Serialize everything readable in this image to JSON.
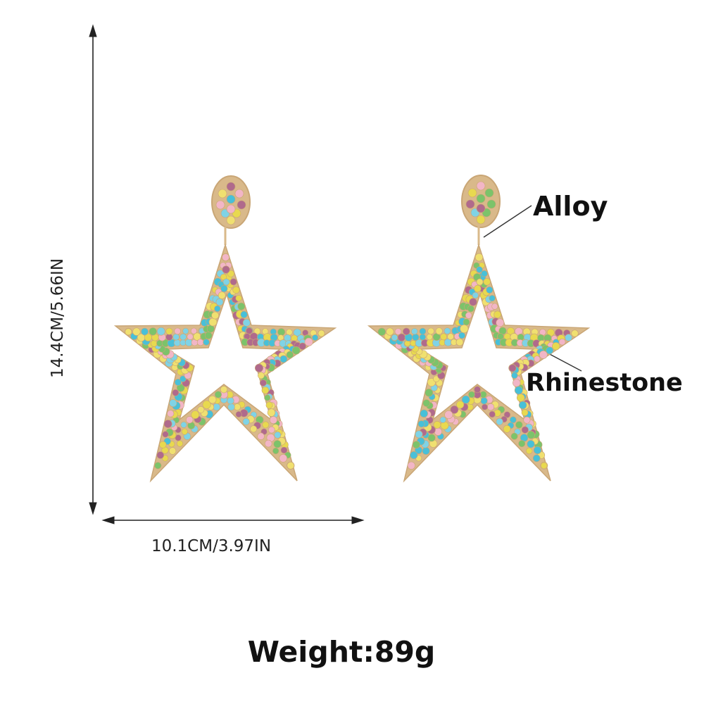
{
  "product": {
    "height_label": "14.4CM/5.66IN",
    "width_label": "10.1CM/3.97IN",
    "callouts": {
      "alloy": "Alloy",
      "rhinestone": "Rhinestone"
    },
    "weight": "Weight:89g"
  },
  "colors": {
    "gold": "#d9b98a",
    "stones": [
      "#7fd3e6",
      "#e8d94f",
      "#b06a8c",
      "#f2b6c6",
      "#7cc36a",
      "#48c0d8",
      "#f0e070"
    ]
  }
}
